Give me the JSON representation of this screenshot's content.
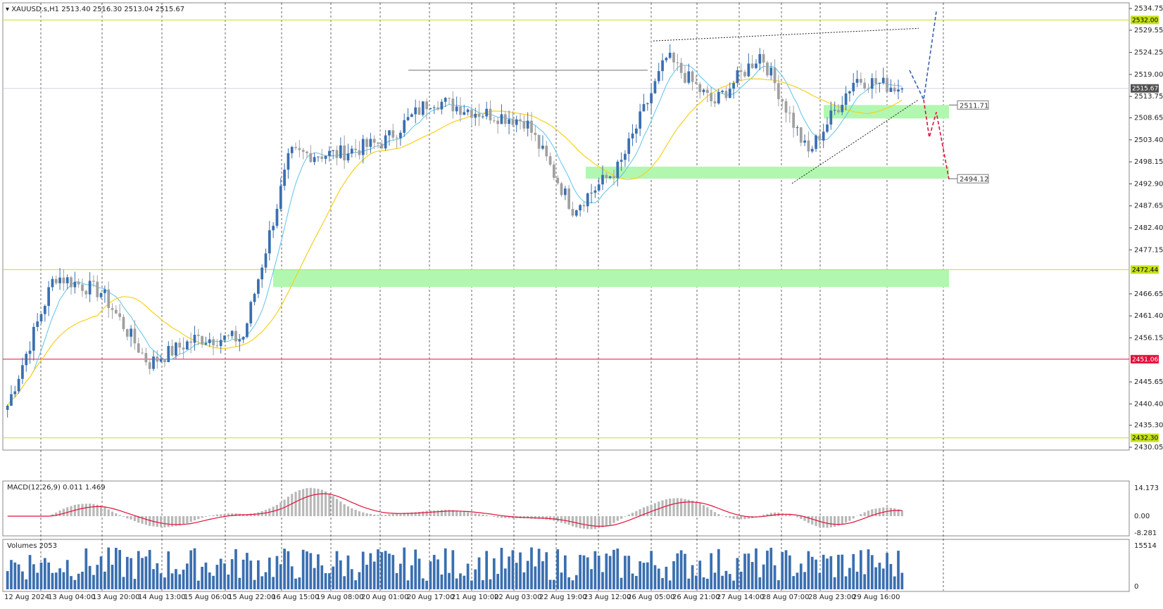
{
  "header": {
    "symbol_line": "▾ XAUUSD.s,H1  2513.40 2516.30 2513.04 2515.67"
  },
  "price_axis": {
    "ticks": [
      "2534.75",
      "2529.55",
      "2524.25",
      "2519.00",
      "2513.75",
      "2508.65",
      "2503.40",
      "2498.15",
      "2492.90",
      "2487.65",
      "2482.40",
      "2477.15",
      "2466.65",
      "2461.40",
      "2456.15",
      "2445.65",
      "2440.40",
      "2435.30",
      "2430.05"
    ],
    "markers": [
      {
        "value": "2532.00",
        "color": "#c6e11b"
      },
      {
        "value": "2515.67",
        "color": "#505050"
      },
      {
        "value": "2472.44",
        "color": "#c6e11b"
      },
      {
        "value": "2451.06",
        "color": "#e0103a"
      },
      {
        "value": "2432.30",
        "color": "#c6e11b"
      }
    ]
  },
  "levels": {
    "resistance_top": "2532.00",
    "support_zone": "2472.44",
    "red_line": "2451.06",
    "bottom_line": "2432.30",
    "target1_label": "2511.71",
    "target2_label": "2494.12"
  },
  "macd": {
    "title": "MACD(12,26,9) 0.011 1.469",
    "ticks": [
      "14.173",
      "0.00",
      "-8.281"
    ]
  },
  "volumes": {
    "title": "Volumes 2053",
    "ticks": [
      "15514",
      "0"
    ]
  },
  "time_axis": [
    "12 Aug 2024",
    "13 Aug 04:00",
    "13 Aug 20:00",
    "14 Aug 13:00",
    "15 Aug 06:00",
    "15 Aug 22:00",
    "16 Aug 15:00",
    "19 Aug 08:00",
    "20 Aug 01:00",
    "20 Aug 17:00",
    "21 Aug 10:00",
    "22 Aug 03:00",
    "22 Aug 19:00",
    "23 Aug 12:00",
    "26 Aug 05:00",
    "26 Aug 21:00",
    "27 Aug 14:00",
    "28 Aug 07:00",
    "28 Aug 23:00",
    "29 Aug 16:00"
  ],
  "colors": {
    "bull": "#3a6fb0",
    "bear": "#a0a0a0",
    "ma_fast": "#5fc2e8",
    "ma_slow": "#f5d11c",
    "zone": "#b2f7b0",
    "red_level": "#e0103a",
    "lime_level": "#c6e11b",
    "macd_signal": "#e0103a",
    "projection_blue": "#3a5fb0",
    "projection_red": "#e0103a"
  },
  "chart_data": {
    "type": "candlestick",
    "title": "XAUUSD.s,H1",
    "anchor_closes": [
      {
        "t": "12 Aug 2024",
        "close": 2440
      },
      {
        "t": "13 Aug 04:00",
        "close": 2471
      },
      {
        "t": "13 Aug 20:00",
        "close": 2467
      },
      {
        "t": "14 Aug 13:00",
        "close": 2450
      },
      {
        "t": "15 Aug 06:00",
        "close": 2456
      },
      {
        "t": "15 Aug 22:00",
        "close": 2456
      },
      {
        "t": "16 Aug 15:00",
        "close": 2500
      },
      {
        "t": "19 Aug 08:00",
        "close": 2500
      },
      {
        "t": "20 Aug 01:00",
        "close": 2503
      },
      {
        "t": "20 Aug 17:00",
        "close": 2513
      },
      {
        "t": "21 Aug 10:00",
        "close": 2510
      },
      {
        "t": "22 Aug 03:00",
        "close": 2508
      },
      {
        "t": "22 Aug 19:00",
        "close": 2487
      },
      {
        "t": "23 Aug 12:00",
        "close": 2497
      },
      {
        "t": "26 Aug 05:00",
        "close": 2523
      },
      {
        "t": "26 Aug 21:00",
        "close": 2512
      },
      {
        "t": "27 Aug 14:00",
        "close": 2524
      },
      {
        "t": "28 Aug 07:00",
        "close": 2500
      },
      {
        "t": "28 Aug 23:00",
        "close": 2518
      },
      {
        "t": "29 Aug 16:00",
        "close": 2515.67
      }
    ],
    "last": {
      "open": 2513.4,
      "high": 2516.3,
      "low": 2513.04,
      "close": 2515.67
    },
    "ylim": [
      2430.05,
      2534.75
    ]
  }
}
